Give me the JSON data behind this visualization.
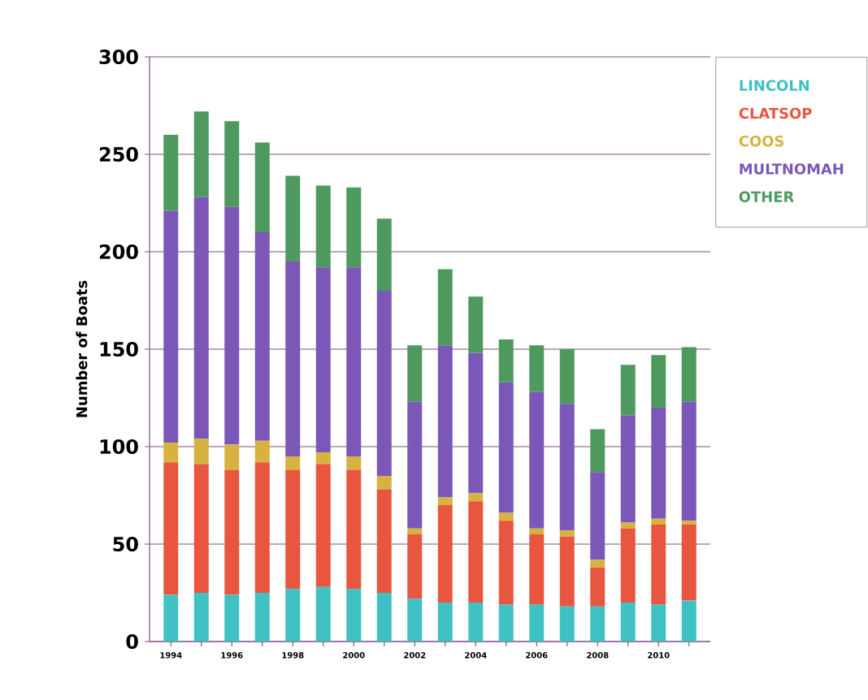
{
  "chart_data": {
    "type": "bar",
    "stacked": true,
    "ylabel": "Number of Boats",
    "categories": [
      "1994",
      null,
      "1996",
      null,
      "1998",
      null,
      "2000",
      null,
      "2002",
      null,
      "2004",
      null,
      "2006",
      null,
      "2008",
      null,
      "2010",
      null
    ],
    "ylim": [
      0,
      300
    ],
    "yticks": [
      0,
      50,
      100,
      150,
      200,
      250,
      300
    ],
    "grid": "y",
    "legend": "top right",
    "series": [
      {
        "name": "LINCOLN",
        "color": "#3fc1c4",
        "values": [
          24,
          25,
          24,
          25,
          27,
          28,
          27,
          25,
          22,
          20,
          20,
          19,
          19,
          18,
          18,
          20,
          19,
          21
        ]
      },
      {
        "name": "CLATSOP",
        "color": "#e8563f",
        "values": [
          68,
          66,
          64,
          67,
          61,
          63,
          61,
          53,
          33,
          50,
          52,
          43,
          36,
          36,
          20,
          38,
          41,
          39
        ]
      },
      {
        "name": "COOS",
        "color": "#d8b23f",
        "values": [
          10,
          13,
          13,
          11,
          7,
          6,
          7,
          7,
          3,
          4,
          4,
          4,
          3,
          3,
          4,
          3,
          3,
          2
        ]
      },
      {
        "name": "MULTNOMAH",
        "color": "#7b58b8",
        "values": [
          119,
          124,
          122,
          107,
          100,
          95,
          97,
          95,
          65,
          78,
          72,
          67,
          70,
          65,
          45,
          55,
          57,
          61
        ]
      },
      {
        "name": "OTHER",
        "color": "#4e9a5e",
        "values": [
          39,
          44,
          44,
          46,
          44,
          42,
          41,
          37,
          29,
          39,
          29,
          22,
          24,
          28,
          22,
          26,
          27,
          28
        ]
      }
    ]
  }
}
